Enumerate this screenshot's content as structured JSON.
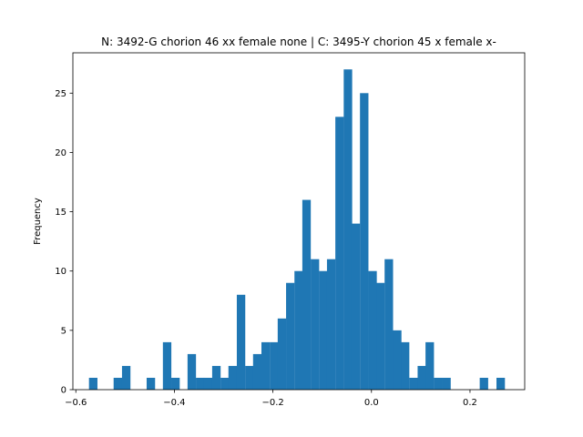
{
  "chart_data": {
    "type": "bar",
    "title": "N: 3492-G chorion 46 xx female none | C: 3495-Y chorion 45 x female x-",
    "xlabel": "",
    "ylabel": "Frequency",
    "bar_color": "#1f77b4",
    "xlim": [
      -0.606,
      0.311
    ],
    "ylim": [
      0,
      28.4
    ],
    "bin_width": 0.0166,
    "x_ticks": [
      -0.6,
      -0.4,
      -0.2,
      0.0,
      0.2
    ],
    "x_tick_labels": [
      "−0.6",
      "−0.4",
      "−0.2",
      "0.0",
      "0.2"
    ],
    "y_ticks": [
      0,
      5,
      10,
      15,
      20,
      25
    ],
    "y_tick_labels": [
      "0",
      "5",
      "10",
      "15",
      "20",
      "25"
    ],
    "grid": false,
    "bins": [
      {
        "x": -0.565,
        "count": 1
      },
      {
        "x": -0.515,
        "count": 1
      },
      {
        "x": -0.498,
        "count": 2
      },
      {
        "x": -0.448,
        "count": 1
      },
      {
        "x": -0.415,
        "count": 4
      },
      {
        "x": -0.398,
        "count": 1
      },
      {
        "x": -0.365,
        "count": 3
      },
      {
        "x": -0.348,
        "count": 1
      },
      {
        "x": -0.332,
        "count": 1
      },
      {
        "x": -0.315,
        "count": 2
      },
      {
        "x": -0.298,
        "count": 1
      },
      {
        "x": -0.282,
        "count": 2
      },
      {
        "x": -0.265,
        "count": 8
      },
      {
        "x": -0.248,
        "count": 2
      },
      {
        "x": -0.232,
        "count": 3
      },
      {
        "x": -0.215,
        "count": 4
      },
      {
        "x": -0.198,
        "count": 4
      },
      {
        "x": -0.182,
        "count": 6
      },
      {
        "x": -0.165,
        "count": 9
      },
      {
        "x": -0.148,
        "count": 10
      },
      {
        "x": -0.132,
        "count": 16
      },
      {
        "x": -0.115,
        "count": 11
      },
      {
        "x": -0.098,
        "count": 10
      },
      {
        "x": -0.082,
        "count": 11
      },
      {
        "x": -0.065,
        "count": 23
      },
      {
        "x": -0.048,
        "count": 27
      },
      {
        "x": -0.032,
        "count": 14
      },
      {
        "x": -0.015,
        "count": 25
      },
      {
        "x": 0.002,
        "count": 10
      },
      {
        "x": 0.018,
        "count": 9
      },
      {
        "x": 0.035,
        "count": 11
      },
      {
        "x": 0.052,
        "count": 5
      },
      {
        "x": 0.068,
        "count": 4
      },
      {
        "x": 0.085,
        "count": 1
      },
      {
        "x": 0.102,
        "count": 2
      },
      {
        "x": 0.118,
        "count": 4
      },
      {
        "x": 0.135,
        "count": 1
      },
      {
        "x": 0.152,
        "count": 1
      },
      {
        "x": 0.228,
        "count": 1
      },
      {
        "x": 0.262,
        "count": 1
      }
    ]
  }
}
